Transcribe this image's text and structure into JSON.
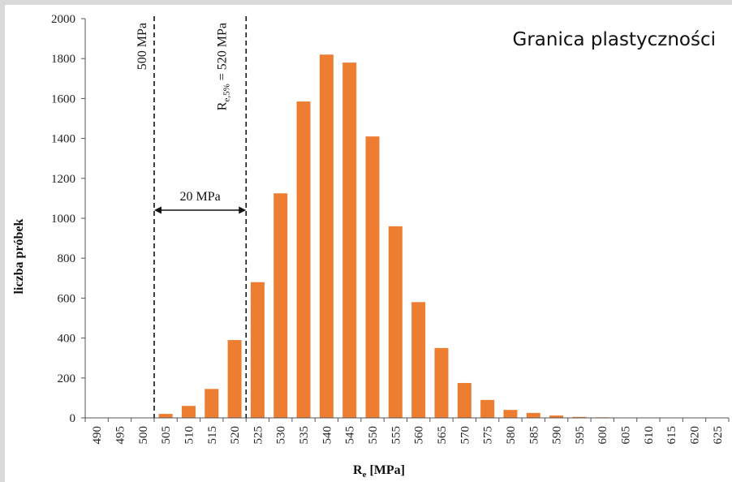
{
  "chart_data": {
    "type": "bar",
    "title": "Granica plastyczności",
    "xlabel_main": "R",
    "xlabel_sub": "e",
    "xlabel_unit": " [MPa]",
    "ylabel": "liczba próbek",
    "ylim": [
      0,
      2000
    ],
    "yticks": [
      "0",
      "200",
      "400",
      "600",
      "800",
      "1000",
      "1200",
      "1400",
      "1600",
      "1800",
      "2000"
    ],
    "grid": false,
    "bar_color": "#ed7d31",
    "categories": [
      "490",
      "495",
      "500",
      "505",
      "510",
      "515",
      "520",
      "525",
      "530",
      "535",
      "540",
      "545",
      "550",
      "555",
      "560",
      "565",
      "570",
      "575",
      "580",
      "585",
      "590",
      "595",
      "600",
      "605",
      "610",
      "615",
      "620",
      "625"
    ],
    "values": [
      0,
      0,
      0,
      20,
      60,
      145,
      390,
      680,
      1125,
      1585,
      1820,
      1780,
      1410,
      960,
      580,
      350,
      175,
      90,
      40,
      25,
      12,
      5,
      3,
      0,
      0,
      0,
      0,
      0
    ],
    "annotations": {
      "line1_label": "500 MPa",
      "line1_at": "500",
      "line2_label_main": "R",
      "line2_label_sub": "e,5%",
      "line2_label_rest": " = 520 MPa",
      "line2_at": "520",
      "arrow_label": "20 MPa"
    }
  }
}
